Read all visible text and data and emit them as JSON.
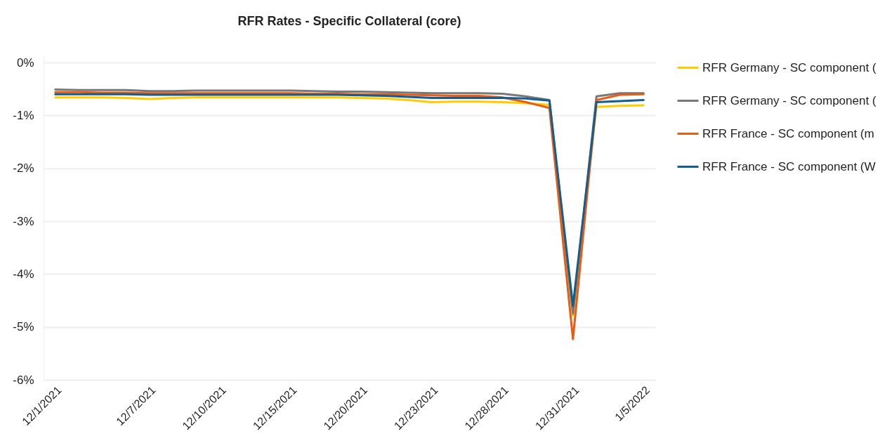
{
  "chart_data": {
    "type": "line",
    "title": "RFR Rates - Specific Collateral (core)",
    "categories": [
      "12/1/2021",
      null,
      null,
      null,
      "12/7/2021",
      null,
      null,
      "12/10/2021",
      null,
      null,
      "12/15/2021",
      null,
      null,
      "12/20/2021",
      null,
      null,
      "12/23/2021",
      null,
      null,
      "12/28/2021",
      null,
      null,
      "12/31/2021",
      null,
      null,
      "1/5/2022"
    ],
    "series": [
      {
        "name": "RFR Germany - SC component (",
        "color": "#ffcc00",
        "values": [
          -0.66,
          -0.66,
          -0.66,
          -0.67,
          -0.69,
          -0.67,
          -0.66,
          -0.66,
          -0.66,
          -0.66,
          -0.66,
          -0.66,
          -0.66,
          -0.67,
          -0.68,
          -0.71,
          -0.75,
          -0.74,
          -0.74,
          -0.75,
          -0.77,
          -0.8,
          -4.79,
          -0.84,
          -0.82,
          -0.81
        ]
      },
      {
        "name": "RFR Germany - SC component (",
        "color": "#787878",
        "values": [
          -0.51,
          -0.52,
          -0.52,
          -0.52,
          -0.54,
          -0.54,
          -0.53,
          -0.53,
          -0.53,
          -0.53,
          -0.53,
          -0.54,
          -0.55,
          -0.55,
          -0.56,
          -0.57,
          -0.58,
          -0.58,
          -0.58,
          -0.59,
          -0.64,
          -0.71,
          -4.75,
          -0.64,
          -0.58,
          -0.58
        ]
      },
      {
        "name": "RFR France - SC component (m",
        "color": "#ea5b14",
        "values": [
          -0.56,
          -0.56,
          -0.57,
          -0.57,
          -0.58,
          -0.58,
          -0.58,
          -0.58,
          -0.58,
          -0.58,
          -0.58,
          -0.59,
          -0.59,
          -0.6,
          -0.6,
          -0.61,
          -0.62,
          -0.63,
          -0.63,
          -0.66,
          -0.75,
          -0.86,
          -5.23,
          -0.71,
          -0.61,
          -0.6
        ]
      },
      {
        "name": "RFR France - SC component (W",
        "color": "#125f8f",
        "values": [
          -0.6,
          -0.6,
          -0.6,
          -0.6,
          -0.61,
          -0.61,
          -0.61,
          -0.61,
          -0.61,
          -0.61,
          -0.61,
          -0.61,
          -0.61,
          -0.62,
          -0.63,
          -0.65,
          -0.67,
          -0.67,
          -0.67,
          -0.67,
          -0.68,
          -0.72,
          -4.6,
          -0.75,
          -0.73,
          -0.71
        ]
      }
    ],
    "ylim": [
      -6,
      0.12
    ],
    "yticks": [
      {
        "value": -6,
        "label": "-6%"
      },
      {
        "value": -5,
        "label": "-5%"
      },
      {
        "value": -4,
        "label": "-4%"
      },
      {
        "value": -3,
        "label": "-3%"
      },
      {
        "value": -2,
        "label": "-2%"
      },
      {
        "value": -1,
        "label": "-1%"
      },
      {
        "value": 0,
        "label": "0%"
      }
    ],
    "grid": "y",
    "legend": "top right"
  }
}
